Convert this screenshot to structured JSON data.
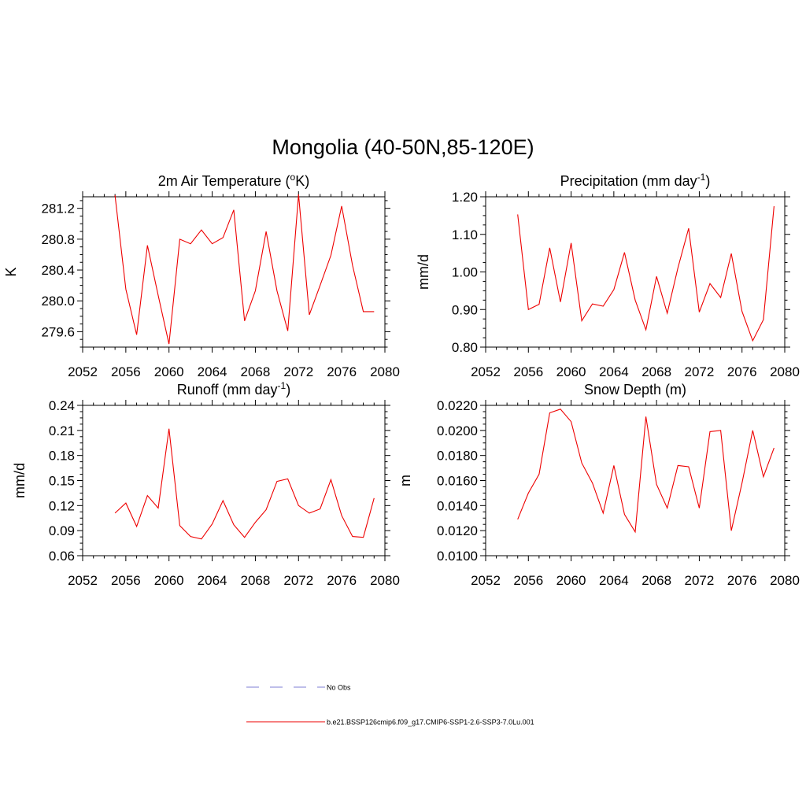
{
  "figure": {
    "title": "Mongolia (40-50N,85-120E)",
    "line_color": "#ee0000",
    "obs_color": "#9999dd"
  },
  "legend": {
    "placement": "bottom-center",
    "entries": [
      {
        "label": "No Obs",
        "style": "dashed",
        "color": "#9999dd"
      },
      {
        "label": "b.e21.BSSP126cmip6.f09_g17.CMIP6-SSP1-2.6-SSP3-7.0Lu.001",
        "style": "solid",
        "color": "#ee0000"
      }
    ]
  },
  "chart_data": [
    {
      "type": "line",
      "title": "2m Air Temperature (",
      "title_sup": "o",
      "title_after": "K)",
      "ylabel": "K",
      "xlabel": "",
      "xlim": [
        2052,
        2080
      ],
      "ylim": [
        279.4,
        281.35
      ],
      "xticks": [
        "2052",
        "2056",
        "2060",
        "2064",
        "2068",
        "2072",
        "2076",
        "2080"
      ],
      "yticks": [
        "279.6",
        "280.0",
        "280.4",
        "280.8",
        "281.2"
      ],
      "grid": false,
      "series": [
        {
          "x": [
            2055,
            2056,
            2057,
            2058,
            2059,
            2060,
            2061,
            2062,
            2063,
            2064,
            2065,
            2066,
            2067,
            2068,
            2069,
            2070,
            2071,
            2072,
            2073,
            2074,
            2075,
            2076,
            2077,
            2078,
            2079
          ],
          "y": [
            281.37,
            280.15,
            279.56,
            280.72,
            280.07,
            279.44,
            280.8,
            280.74,
            280.92,
            280.74,
            280.82,
            281.18,
            279.74,
            280.13,
            280.9,
            280.13,
            279.61,
            281.38,
            279.82,
            280.2,
            280.59,
            281.23,
            280.46,
            279.86,
            279.86
          ]
        }
      ]
    },
    {
      "type": "line",
      "title": "Precipitation (mm day",
      "title_sup": "-1",
      "title_after": ")",
      "ylabel": "mm/d",
      "xlabel": "",
      "xlim": [
        2052,
        2080
      ],
      "ylim": [
        0.8,
        1.2
      ],
      "xticks": [
        "2052",
        "2056",
        "2060",
        "2064",
        "2068",
        "2072",
        "2076",
        "2080"
      ],
      "yticks": [
        "0.80",
        "0.90",
        "1.00",
        "1.10",
        "1.20"
      ],
      "grid": false,
      "series": [
        {
          "x": [
            2055,
            2056,
            2057,
            2058,
            2059,
            2060,
            2061,
            2062,
            2063,
            2064,
            2065,
            2066,
            2067,
            2068,
            2069,
            2070,
            2071,
            2072,
            2073,
            2074,
            2075,
            2076,
            2077,
            2078,
            2079
          ],
          "y": [
            1.153,
            0.9,
            0.914,
            1.064,
            0.92,
            1.077,
            0.87,
            0.915,
            0.909,
            0.953,
            1.052,
            0.925,
            0.846,
            0.988,
            0.89,
            1.011,
            1.116,
            0.893,
            0.969,
            0.932,
            1.049,
            0.895,
            0.817,
            0.873,
            1.175
          ]
        }
      ]
    },
    {
      "type": "line",
      "title": "Runoff (mm day",
      "title_sup": "-1",
      "title_after": ")",
      "ylabel": "mm/d",
      "xlabel": "",
      "xlim": [
        2052,
        2080
      ],
      "ylim": [
        0.06,
        0.24
      ],
      "xticks": [
        "2052",
        "2056",
        "2060",
        "2064",
        "2068",
        "2072",
        "2076",
        "2080"
      ],
      "yticks": [
        "0.06",
        "0.09",
        "0.12",
        "0.15",
        "0.18",
        "0.21",
        "0.24"
      ],
      "grid": false,
      "series": [
        {
          "x": [
            2055,
            2056,
            2057,
            2058,
            2059,
            2060,
            2061,
            2062,
            2063,
            2064,
            2065,
            2066,
            2067,
            2068,
            2069,
            2070,
            2071,
            2072,
            2073,
            2074,
            2075,
            2076,
            2077,
            2078,
            2079
          ],
          "y": [
            0.111,
            0.123,
            0.095,
            0.132,
            0.117,
            0.212,
            0.096,
            0.083,
            0.08,
            0.098,
            0.126,
            0.097,
            0.082,
            0.1,
            0.115,
            0.149,
            0.152,
            0.12,
            0.111,
            0.116,
            0.151,
            0.108,
            0.083,
            0.082,
            0.129
          ]
        }
      ]
    },
    {
      "type": "line",
      "title": "Snow Depth (m)",
      "title_sup": "",
      "title_after": "",
      "ylabel": "m",
      "xlabel": "",
      "xlim": [
        2052,
        2080
      ],
      "ylim": [
        0.01,
        0.022
      ],
      "xticks": [
        "2052",
        "2056",
        "2060",
        "2064",
        "2068",
        "2072",
        "2076",
        "2080"
      ],
      "yticks": [
        "0.0100",
        "0.0120",
        "0.0140",
        "0.0160",
        "0.0180",
        "0.0200",
        "0.0220"
      ],
      "grid": false,
      "series": [
        {
          "x": [
            2055,
            2056,
            2057,
            2058,
            2059,
            2060,
            2061,
            2062,
            2063,
            2064,
            2065,
            2066,
            2067,
            2068,
            2069,
            2070,
            2071,
            2072,
            2073,
            2074,
            2075,
            2076,
            2077,
            2078,
            2079
          ],
          "y": [
            0.0129,
            0.015,
            0.0165,
            0.0214,
            0.0217,
            0.0207,
            0.0174,
            0.0158,
            0.0134,
            0.0172,
            0.0133,
            0.0119,
            0.0211,
            0.0157,
            0.0138,
            0.0172,
            0.0171,
            0.0138,
            0.0199,
            0.02,
            0.012,
            0.0158,
            0.02,
            0.0163,
            0.0186
          ]
        }
      ]
    }
  ]
}
